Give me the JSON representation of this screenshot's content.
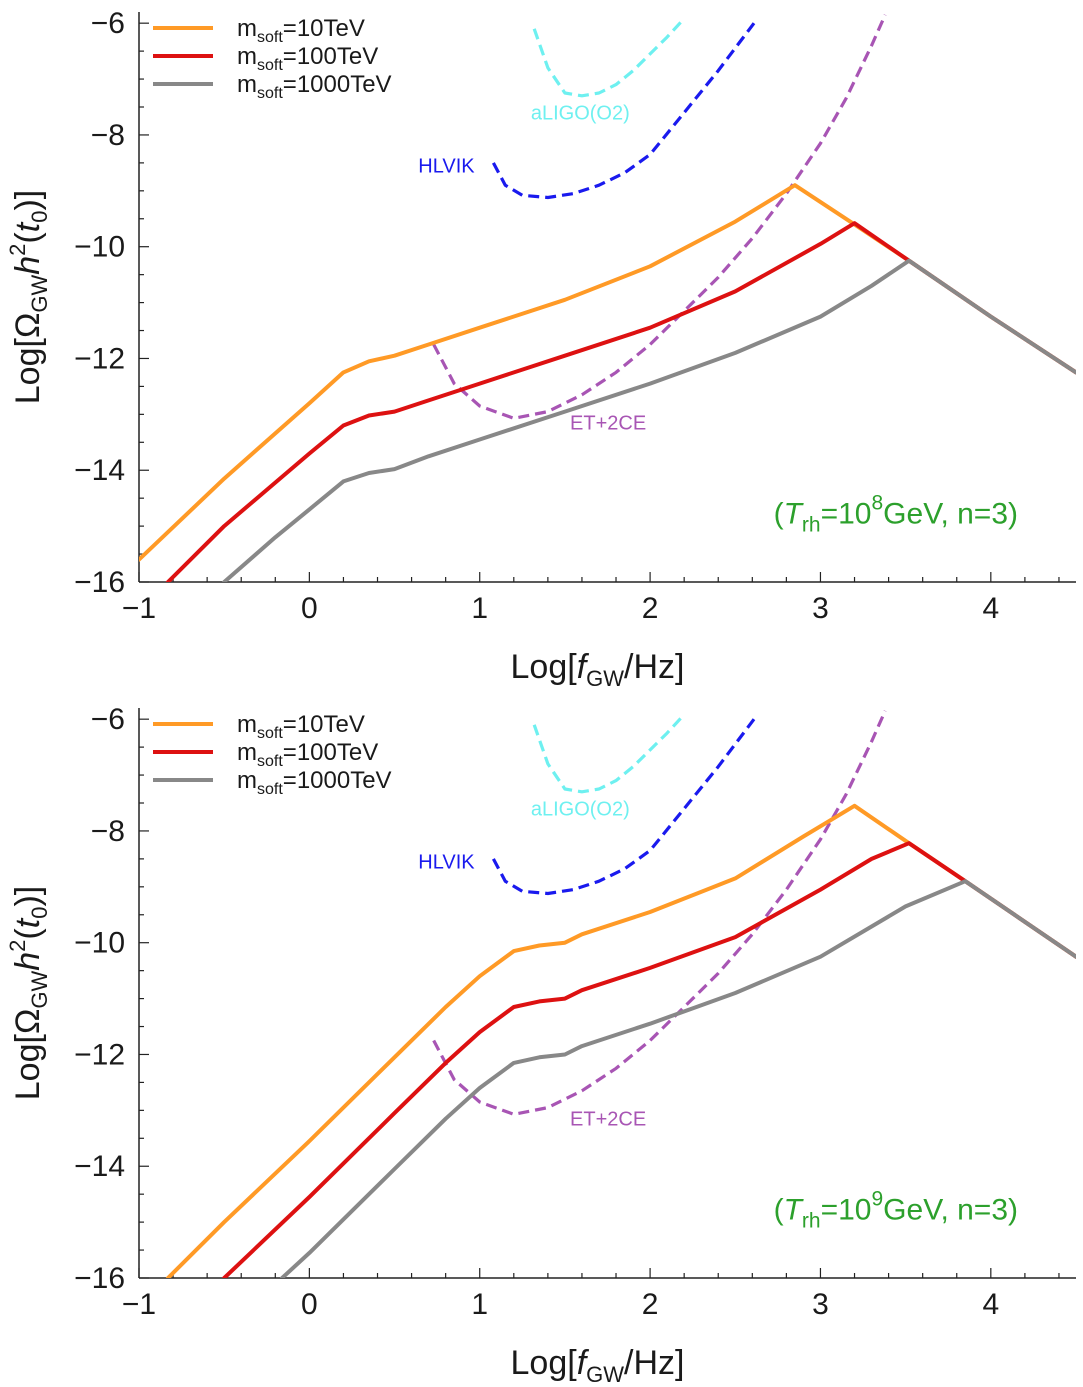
{
  "chart_data": [
    {
      "type": "line",
      "xlabel": "Log[f_GW/Hz]",
      "ylabel": "Log[Ω_GW h²(t₀)]",
      "xlim": [
        -1,
        4.5
      ],
      "ylim": [
        -16,
        -5.8
      ],
      "xticks": [
        -1,
        0,
        1,
        2,
        3,
        4
      ],
      "yticks": [
        -16,
        -14,
        -12,
        -10,
        -8,
        -6
      ],
      "legend_position": "top-left",
      "grid": false,
      "annotation": {
        "T_label": "T",
        "T_sub": "rh",
        "eq": "=10",
        "exp": "8",
        "rest": "GeV, n=3)",
        "open": "(",
        "color": "#2ca02c"
      },
      "series": [
        {
          "name": "m_soft=10TeV",
          "label_main": "m",
          "label_sub": "soft",
          "label_rest": "=10TeV",
          "color": "#ff9a26",
          "x": [
            -1.0,
            -0.5,
            0.0,
            0.2,
            0.35,
            0.5,
            0.7,
            1.0,
            1.5,
            2.0,
            2.5,
            2.85,
            3.2,
            3.52,
            4.0,
            4.5
          ],
          "y": [
            -15.6,
            -14.15,
            -12.8,
            -12.25,
            -12.05,
            -11.95,
            -11.75,
            -11.45,
            -10.95,
            -10.35,
            -9.55,
            -8.9,
            -9.6,
            -10.25,
            -11.25,
            -12.25
          ]
        },
        {
          "name": "m_soft=100TeV",
          "label_main": "m",
          "label_sub": "soft",
          "label_rest": "=100TeV",
          "color": "#dd1111",
          "x": [
            -0.83,
            -0.5,
            0.0,
            0.2,
            0.35,
            0.5,
            0.7,
            1.0,
            1.5,
            2.0,
            2.5,
            3.0,
            3.2,
            3.52,
            4.0,
            4.5
          ],
          "y": [
            -16.0,
            -15.0,
            -13.7,
            -13.2,
            -13.02,
            -12.95,
            -12.75,
            -12.45,
            -11.95,
            -11.45,
            -10.8,
            -9.95,
            -9.58,
            -10.25,
            -11.25,
            -12.25
          ]
        },
        {
          "name": "m_soft=1000TeV",
          "label_main": "m",
          "label_sub": "soft",
          "label_rest": "=1000TeV",
          "color": "#888888",
          "x": [
            -0.5,
            -0.2,
            0.0,
            0.2,
            0.35,
            0.5,
            0.7,
            1.0,
            1.5,
            2.0,
            2.5,
            3.0,
            3.3,
            3.52,
            4.0,
            4.5
          ],
          "y": [
            -16.0,
            -15.2,
            -14.7,
            -14.2,
            -14.05,
            -13.98,
            -13.75,
            -13.45,
            -12.95,
            -12.45,
            -11.9,
            -11.25,
            -10.7,
            -10.25,
            -11.25,
            -12.25
          ]
        }
      ],
      "detectors": [
        {
          "name": "aLIGO(O2)",
          "color": "#6ef0f0",
          "x": [
            1.32,
            1.4,
            1.5,
            1.6,
            1.7,
            1.8,
            1.9,
            2.0,
            2.1,
            2.19
          ],
          "y": [
            -6.1,
            -6.8,
            -7.25,
            -7.3,
            -7.25,
            -7.1,
            -6.85,
            -6.55,
            -6.25,
            -5.95
          ]
        },
        {
          "name": "HLVIK",
          "color": "#1a1aee",
          "x": [
            1.08,
            1.15,
            1.25,
            1.4,
            1.55,
            1.7,
            1.85,
            2.0,
            2.2,
            2.4,
            2.61
          ],
          "y": [
            -8.5,
            -8.9,
            -9.08,
            -9.12,
            -9.05,
            -8.9,
            -8.68,
            -8.35,
            -7.6,
            -6.85,
            -6.0
          ]
        },
        {
          "name": "ET+2CE",
          "color": "#a855b4",
          "x": [
            0.73,
            0.85,
            1.0,
            1.2,
            1.4,
            1.6,
            1.8,
            2.0,
            2.2,
            2.4,
            2.6,
            2.8,
            3.0,
            3.15,
            3.3,
            3.38
          ],
          "y": [
            -11.75,
            -12.45,
            -12.85,
            -13.07,
            -12.95,
            -12.65,
            -12.25,
            -11.75,
            -11.15,
            -10.55,
            -9.85,
            -9.05,
            -8.15,
            -7.35,
            -6.4,
            -5.85
          ]
        }
      ]
    },
    {
      "type": "line",
      "xlabel": "Log[f_GW/Hz]",
      "ylabel": "Log[Ω_GW h²(t₀)]",
      "xlim": [
        -1,
        4.5
      ],
      "ylim": [
        -16,
        -5.8
      ],
      "xticks": [
        -1,
        0,
        1,
        2,
        3,
        4
      ],
      "yticks": [
        -16,
        -14,
        -12,
        -10,
        -8,
        -6
      ],
      "legend_position": "top-left",
      "grid": false,
      "annotation": {
        "T_label": "T",
        "T_sub": "rh",
        "eq": "=10",
        "exp": "9",
        "rest": "GeV, n=3)",
        "open": "(",
        "color": "#2ca02c"
      },
      "series": [
        {
          "name": "m_soft=10TeV",
          "label_main": "m",
          "label_sub": "soft",
          "label_rest": "=10TeV",
          "color": "#ff9a26",
          "x": [
            -0.83,
            -0.5,
            0.0,
            0.5,
            0.8,
            1.0,
            1.2,
            1.35,
            1.5,
            1.6,
            2.0,
            2.5,
            2.9,
            3.2,
            3.52,
            3.85,
            4.5
          ],
          "y": [
            -16.0,
            -15.0,
            -13.55,
            -12.05,
            -11.15,
            -10.6,
            -10.15,
            -10.05,
            -10.0,
            -9.85,
            -9.45,
            -8.85,
            -8.1,
            -7.55,
            -8.22,
            -8.9,
            -10.25
          ]
        },
        {
          "name": "m_soft=100TeV",
          "label_main": "m",
          "label_sub": "soft",
          "label_rest": "=100TeV",
          "color": "#dd1111",
          "x": [
            -0.5,
            0.0,
            0.5,
            0.8,
            1.0,
            1.2,
            1.35,
            1.5,
            1.6,
            2.0,
            2.5,
            3.0,
            3.3,
            3.52,
            3.85,
            4.5
          ],
          "y": [
            -16.0,
            -14.55,
            -13.05,
            -12.15,
            -11.6,
            -11.15,
            -11.05,
            -11.0,
            -10.85,
            -10.45,
            -9.9,
            -9.05,
            -8.5,
            -8.22,
            -8.9,
            -10.25
          ]
        },
        {
          "name": "m_soft=1000TeV",
          "label_main": "m",
          "label_sub": "soft",
          "label_rest": "=1000TeV",
          "color": "#888888",
          "x": [
            -0.16,
            0.0,
            0.5,
            0.8,
            1.0,
            1.2,
            1.35,
            1.5,
            1.6,
            2.0,
            2.5,
            3.0,
            3.5,
            3.85,
            4.5
          ],
          "y": [
            -16.0,
            -15.55,
            -14.05,
            -13.15,
            -12.6,
            -12.15,
            -12.05,
            -12.0,
            -11.85,
            -11.45,
            -10.9,
            -10.25,
            -9.35,
            -8.9,
            -10.25
          ]
        }
      ],
      "detectors": [
        {
          "name": "aLIGO(O2)",
          "color": "#6ef0f0",
          "x": [
            1.32,
            1.4,
            1.5,
            1.6,
            1.7,
            1.8,
            1.9,
            2.0,
            2.1,
            2.19
          ],
          "y": [
            -6.1,
            -6.8,
            -7.25,
            -7.3,
            -7.25,
            -7.1,
            -6.85,
            -6.55,
            -6.25,
            -5.95
          ]
        },
        {
          "name": "HLVIK",
          "color": "#1a1aee",
          "x": [
            1.08,
            1.15,
            1.25,
            1.4,
            1.55,
            1.7,
            1.85,
            2.0,
            2.2,
            2.4,
            2.61
          ],
          "y": [
            -8.5,
            -8.9,
            -9.08,
            -9.12,
            -9.05,
            -8.9,
            -8.68,
            -8.35,
            -7.6,
            -6.85,
            -6.0
          ]
        },
        {
          "name": "ET+2CE",
          "color": "#a855b4",
          "x": [
            0.73,
            0.85,
            1.0,
            1.2,
            1.4,
            1.6,
            1.8,
            2.0,
            2.2,
            2.4,
            2.6,
            2.8,
            3.0,
            3.15,
            3.3,
            3.38
          ],
          "y": [
            -11.75,
            -12.45,
            -12.85,
            -13.07,
            -12.95,
            -12.65,
            -12.25,
            -11.75,
            -11.15,
            -10.55,
            -9.85,
            -9.05,
            -8.15,
            -7.35,
            -6.4,
            -5.85
          ]
        }
      ]
    }
  ]
}
